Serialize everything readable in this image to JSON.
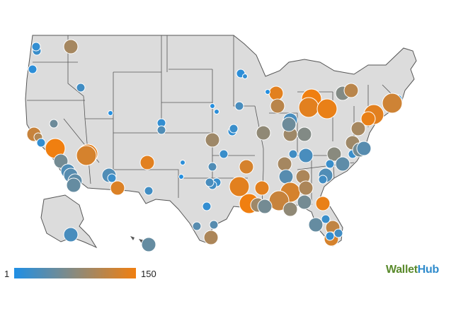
{
  "legend": {
    "min_label": "1",
    "max_label": "150",
    "colors": [
      "#1f8fe5",
      "#8a8a7d",
      "#f07f10"
    ]
  },
  "brand": {
    "name_part1": "Wallet",
    "name_part2": "Hub",
    "colors": {
      "part1": "#5a8a2c",
      "part2": "#2f8bcc"
    }
  },
  "map": {
    "land_color": "#dcdcdc",
    "border_color": "#555555",
    "markers": [
      {
        "id": "seattle",
        "rank": 20,
        "size": "s"
      },
      {
        "id": "tacoma",
        "rank": 15,
        "size": "s"
      },
      {
        "id": "spokane",
        "rank": 95,
        "size": "m"
      },
      {
        "id": "portland",
        "rank": 10,
        "size": "s"
      },
      {
        "id": "boise",
        "rank": 25,
        "size": "s"
      },
      {
        "id": "sacramento",
        "rank": 55,
        "size": "s"
      },
      {
        "id": "sf",
        "rank": 120,
        "size": "m"
      },
      {
        "id": "oakland",
        "rank": 105,
        "size": "s"
      },
      {
        "id": "san-jose",
        "rank": 15,
        "size": "s"
      },
      {
        "id": "fresno",
        "rank": 150,
        "size": "l"
      },
      {
        "id": "bakersfield",
        "rank": 140,
        "size": "l"
      },
      {
        "id": "los-angeles",
        "rank": 60,
        "size": "m"
      },
      {
        "id": "long-beach",
        "rank": 35,
        "size": "m"
      },
      {
        "id": "anaheim",
        "rank": 40,
        "size": "m"
      },
      {
        "id": "riverside",
        "rank": 45,
        "size": "m"
      },
      {
        "id": "san-diego",
        "rank": 50,
        "size": "m"
      },
      {
        "id": "las-vegas",
        "rank": 130,
        "size": "l"
      },
      {
        "id": "salt-lake",
        "rank": 5,
        "size": "xs"
      },
      {
        "id": "phoenix",
        "rank": 35,
        "size": "m"
      },
      {
        "id": "mesa",
        "rank": 20,
        "size": "s"
      },
      {
        "id": "tucson",
        "rank": 135,
        "size": "m"
      },
      {
        "id": "denver",
        "rank": 15,
        "size": "s"
      },
      {
        "id": "aurora",
        "rank": 35,
        "size": "s"
      },
      {
        "id": "albuquerque",
        "rank": 140,
        "size": "m"
      },
      {
        "id": "el-paso",
        "rank": 25,
        "size": "s"
      },
      {
        "id": "omaha",
        "rank": 10,
        "size": "xs"
      },
      {
        "id": "lincoln",
        "rank": 5,
        "size": "xs"
      },
      {
        "id": "wichita",
        "rank": 35,
        "size": "s"
      },
      {
        "id": "kansas-city",
        "rank": 15,
        "size": "s"
      },
      {
        "id": "kc-mo",
        "rank": 20,
        "size": "s"
      },
      {
        "id": "tulsa",
        "rank": 90,
        "size": "m"
      },
      {
        "id": "okc",
        "rank": 20,
        "size": "s"
      },
      {
        "id": "lubbock",
        "rank": 10,
        "size": "xs"
      },
      {
        "id": "amarillo",
        "rank": 5,
        "size": "xs"
      },
      {
        "id": "dallas",
        "rank": 20,
        "size": "s"
      },
      {
        "id": "fort-worth",
        "rank": 25,
        "size": "s"
      },
      {
        "id": "arlington",
        "rank": 30,
        "size": "s"
      },
      {
        "id": "austin",
        "rank": 15,
        "size": "s"
      },
      {
        "id": "san-antonio",
        "rank": 40,
        "size": "s"
      },
      {
        "id": "houston",
        "rank": 140,
        "size": "m"
      },
      {
        "id": "corpus",
        "rank": 100,
        "size": "m"
      },
      {
        "id": "laredo",
        "rank": 40,
        "size": "s"
      },
      {
        "id": "minneapolis",
        "rank": 10,
        "size": "s"
      },
      {
        "id": "st-paul",
        "rank": 15,
        "size": "xs"
      },
      {
        "id": "des-moines",
        "rank": 30,
        "size": "s"
      },
      {
        "id": "milwaukee",
        "rank": 140,
        "size": "m"
      },
      {
        "id": "madison",
        "rank": 5,
        "size": "xs"
      },
      {
        "id": "chicago",
        "rank": 110,
        "size": "m"
      },
      {
        "id": "st-louis",
        "rank": 80,
        "size": "m"
      },
      {
        "id": "detroit",
        "rank": 150,
        "size": "l"
      },
      {
        "id": "toledo",
        "rank": 140,
        "size": "l"
      },
      {
        "id": "cleveland",
        "rank": 145,
        "size": "l"
      },
      {
        "id": "columbus",
        "rank": 30,
        "size": "m"
      },
      {
        "id": "cincinnati",
        "rank": 90,
        "size": "m"
      },
      {
        "id": "fort-wayne",
        "rank": 55,
        "size": "m"
      },
      {
        "id": "indianapolis",
        "rank": 70,
        "size": "m"
      },
      {
        "id": "louisville",
        "rank": 30,
        "size": "m"
      },
      {
        "id": "lexington",
        "rank": 25,
        "size": "s"
      },
      {
        "id": "pittsburgh",
        "rank": 70,
        "size": "m"
      },
      {
        "id": "buffalo",
        "rank": 110,
        "size": "m"
      },
      {
        "id": "boston",
        "rank": 10,
        "size": "s"
      },
      {
        "id": "providence",
        "rank": 125,
        "size": "l"
      },
      {
        "id": "nyc",
        "rank": 140,
        "size": "l"
      },
      {
        "id": "newark",
        "rank": 145,
        "size": "m"
      },
      {
        "id": "philadelphia",
        "rank": 95,
        "size": "m"
      },
      {
        "id": "baltimore",
        "rank": 90,
        "size": "m"
      },
      {
        "id": "dc",
        "rank": 20,
        "size": "s"
      },
      {
        "id": "richmond",
        "rank": 60,
        "size": "m"
      },
      {
        "id": "virginia-beach",
        "rank": 40,
        "size": "m"
      },
      {
        "id": "norfolk",
        "rank": 15,
        "size": "s"
      },
      {
        "id": "raleigh",
        "rank": 75,
        "size": "m"
      },
      {
        "id": "durham",
        "rank": 45,
        "size": "m"
      },
      {
        "id": "greensboro",
        "rank": 35,
        "size": "m"
      },
      {
        "id": "charlotte",
        "rank": 20,
        "size": "s"
      },
      {
        "id": "nashville",
        "rank": 95,
        "size": "m"
      },
      {
        "id": "memphis",
        "rank": 140,
        "size": "m"
      },
      {
        "id": "knoxville",
        "rank": 40,
        "size": "m"
      },
      {
        "id": "chattanooga",
        "rank": 100,
        "size": "m"
      },
      {
        "id": "atlanta",
        "rank": 130,
        "size": "l"
      },
      {
        "id": "birmingham",
        "rank": 120,
        "size": "l"
      },
      {
        "id": "montgomery",
        "rank": 100,
        "size": "m"
      },
      {
        "id": "jackson",
        "rank": 150,
        "size": "l"
      },
      {
        "id": "columbia",
        "rank": 60,
        "size": "m"
      },
      {
        "id": "charleston",
        "rank": 25,
        "size": "s"
      },
      {
        "id": "baton-rouge",
        "rank": 90,
        "size": "m"
      },
      {
        "id": "new-orleans",
        "rank": 60,
        "size": "m"
      },
      {
        "id": "shreveport",
        "rank": 130,
        "size": "m"
      },
      {
        "id": "little-rock",
        "rank": 140,
        "size": "l"
      },
      {
        "id": "jacksonville",
        "rank": 145,
        "size": "m"
      },
      {
        "id": "tallahassee",
        "rank": 80,
        "size": "m"
      },
      {
        "id": "orlando",
        "rank": 50,
        "size": "m"
      },
      {
        "id": "tampa",
        "rank": 115,
        "size": "m"
      },
      {
        "id": "st-pete",
        "rank": 20,
        "size": "s"
      },
      {
        "id": "miami",
        "rank": 130,
        "size": "m"
      },
      {
        "id": "fort-lauderdale",
        "rank": 25,
        "size": "s"
      },
      {
        "id": "hialeah",
        "rank": 15,
        "size": "s"
      },
      {
        "id": "anchorage",
        "rank": 30,
        "size": "m"
      },
      {
        "id": "honolulu",
        "rank": 50,
        "size": "m"
      }
    ]
  }
}
